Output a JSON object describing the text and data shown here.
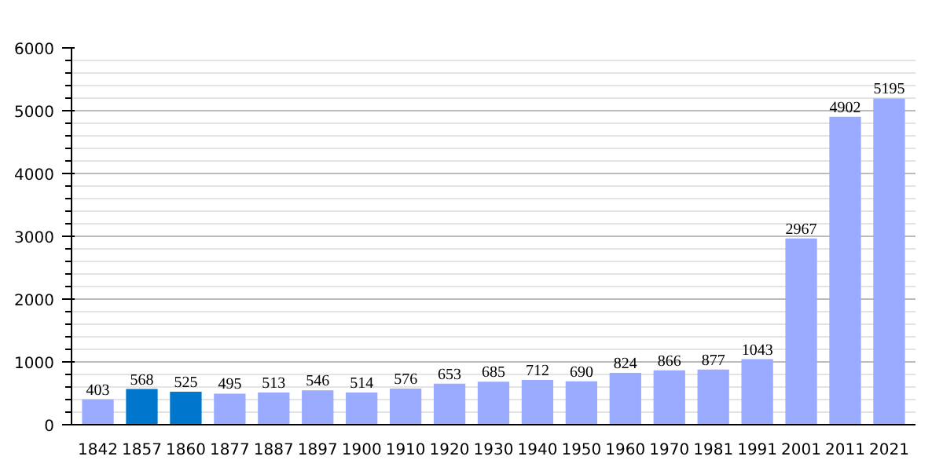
{
  "chart_data": {
    "type": "bar",
    "categories": [
      "1842",
      "1857",
      "1860",
      "1877",
      "1887",
      "1897",
      "1900",
      "1910",
      "1920",
      "1930",
      "1940",
      "1950",
      "1960",
      "1970",
      "1981",
      "1991",
      "2001",
      "2011",
      "2021"
    ],
    "values": [
      403,
      568,
      525,
      495,
      513,
      546,
      514,
      576,
      653,
      685,
      712,
      690,
      824,
      866,
      877,
      1043,
      2967,
      4902,
      5195
    ],
    "colors": [
      "#99aaff",
      "#0077cc",
      "#0077cc",
      "#99aaff",
      "#99aaff",
      "#99aaff",
      "#99aaff",
      "#99aaff",
      "#99aaff",
      "#99aaff",
      "#99aaff",
      "#99aaff",
      "#99aaff",
      "#99aaff",
      "#99aaff",
      "#99aaff",
      "#99aaff",
      "#99aaff",
      "#99aaff"
    ],
    "ylim": [
      0,
      6000
    ],
    "yticks": [
      0,
      1000,
      2000,
      3000,
      4000,
      5000,
      6000
    ],
    "grid": "y",
    "data_labels": true
  }
}
